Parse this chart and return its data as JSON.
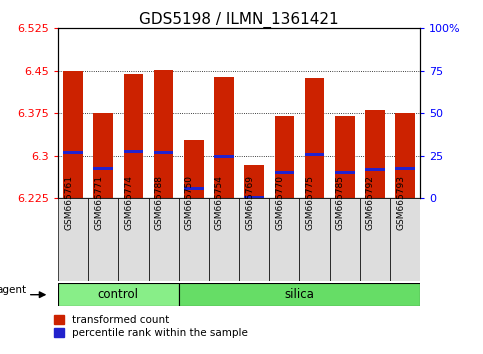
{
  "title": "GDS5198 / ILMN_1361421",
  "samples": [
    "GSM665761",
    "GSM665771",
    "GSM665774",
    "GSM665788",
    "GSM665750",
    "GSM665754",
    "GSM665769",
    "GSM665770",
    "GSM665775",
    "GSM665785",
    "GSM665792",
    "GSM665793"
  ],
  "groups": [
    "control",
    "control",
    "control",
    "control",
    "silica",
    "silica",
    "silica",
    "silica",
    "silica",
    "silica",
    "silica",
    "silica"
  ],
  "bar_values": [
    6.449,
    6.376,
    6.444,
    6.452,
    6.328,
    6.439,
    6.284,
    6.37,
    6.438,
    6.37,
    6.38,
    6.376
  ],
  "blue_marker_values": [
    6.305,
    6.278,
    6.308,
    6.305,
    6.243,
    6.299,
    6.227,
    6.271,
    6.303,
    6.271,
    6.276,
    6.278
  ],
  "ymin": 6.225,
  "ymax": 6.525,
  "yticks": [
    6.225,
    6.3,
    6.375,
    6.45,
    6.525
  ],
  "ytick_labels": [
    "6.225",
    "6.3",
    "6.375",
    "6.45",
    "6.525"
  ],
  "right_yticks": [
    0,
    25,
    50,
    75,
    100
  ],
  "right_ytick_labels": [
    "0",
    "25",
    "50",
    "75",
    "100%"
  ],
  "bar_color": "#cc2200",
  "blue_color": "#2222cc",
  "control_color": "#88ee88",
  "silica_color": "#66dd66",
  "xticklabel_bg": "#dddddd",
  "legend_items": [
    "transformed count",
    "percentile rank within the sample"
  ],
  "bar_width": 0.65,
  "title_fontsize": 11
}
